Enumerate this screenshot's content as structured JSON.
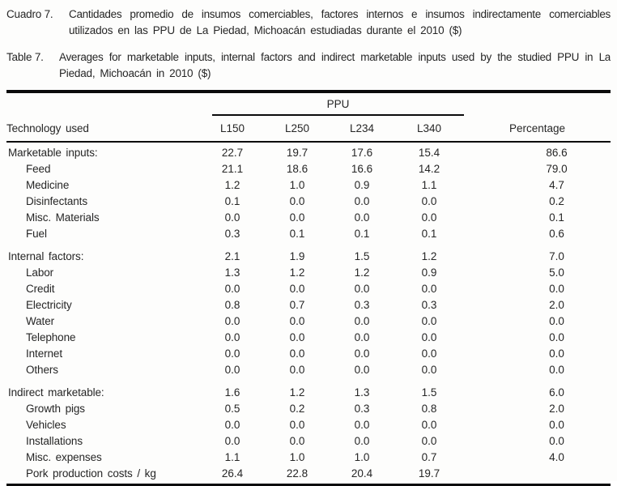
{
  "caption_es": {
    "label": "Cuadro 7.",
    "line1": "Cantidades promedio de insumos comerciables, factores internos e insumos indirectamente comerciables",
    "line2": "utilizados en las PPU de La Piedad, Michoacán estudiadas durante el 2010 ($)"
  },
  "caption_en": {
    "label": "Table 7.",
    "line1": "Averages for marketable inputs, internal factors and indirect marketable inputs used by the studied PPU in La",
    "line2": "Piedad, Michoacán in 2010 ($)"
  },
  "table": {
    "span_header": "PPU",
    "row_header": "Technology used",
    "ppu_columns": [
      "L150",
      "L250",
      "L234",
      "L340"
    ],
    "percentage_header": "Percentage",
    "rows": [
      {
        "label": "Marketable inputs:",
        "indent": false,
        "section": true,
        "gap": false,
        "values": [
          "22.7",
          "19.7",
          "17.6",
          "15.4"
        ],
        "percentage": "86.6"
      },
      {
        "label": "Feed",
        "indent": true,
        "section": false,
        "gap": false,
        "values": [
          "21.1",
          "18.6",
          "16.6",
          "14.2"
        ],
        "percentage": "79.0"
      },
      {
        "label": "Medicine",
        "indent": true,
        "section": false,
        "gap": false,
        "values": [
          "1.2",
          "1.0",
          "0.9",
          "1.1"
        ],
        "percentage": "4.7"
      },
      {
        "label": "Disinfectants",
        "indent": true,
        "section": false,
        "gap": false,
        "values": [
          "0.1",
          "0.0",
          "0.0",
          "0.0"
        ],
        "percentage": "0.2"
      },
      {
        "label": "Misc. Materials",
        "indent": true,
        "section": false,
        "gap": false,
        "values": [
          "0.0",
          "0.0",
          "0.0",
          "0.0"
        ],
        "percentage": "0.1"
      },
      {
        "label": "Fuel",
        "indent": true,
        "section": false,
        "gap": false,
        "values": [
          "0.3",
          "0.1",
          "0.1",
          "0.1"
        ],
        "percentage": "0.6"
      },
      {
        "label": "Internal factors:",
        "indent": false,
        "section": true,
        "gap": true,
        "values": [
          "2.1",
          "1.9",
          "1.5",
          "1.2"
        ],
        "percentage": "7.0"
      },
      {
        "label": "Labor",
        "indent": true,
        "section": false,
        "gap": false,
        "values": [
          "1.3",
          "1.2",
          "1.2",
          "0.9"
        ],
        "percentage": "5.0"
      },
      {
        "label": "Credit",
        "indent": true,
        "section": false,
        "gap": false,
        "values": [
          "0.0",
          "0.0",
          "0.0",
          "0.0"
        ],
        "percentage": "0.0"
      },
      {
        "label": "Electricity",
        "indent": true,
        "section": false,
        "gap": false,
        "values": [
          "0.8",
          "0.7",
          "0.3",
          "0.3"
        ],
        "percentage": "2.0"
      },
      {
        "label": "Water",
        "indent": true,
        "section": false,
        "gap": false,
        "values": [
          "0.0",
          "0.0",
          "0.0",
          "0.0"
        ],
        "percentage": "0.0"
      },
      {
        "label": "Telephone",
        "indent": true,
        "section": false,
        "gap": false,
        "values": [
          "0.0",
          "0.0",
          "0.0",
          "0.0"
        ],
        "percentage": "0.0"
      },
      {
        "label": "Internet",
        "indent": true,
        "section": false,
        "gap": false,
        "values": [
          "0.0",
          "0.0",
          "0.0",
          "0.0"
        ],
        "percentage": "0.0"
      },
      {
        "label": "Others",
        "indent": true,
        "section": false,
        "gap": false,
        "values": [
          "0.0",
          "0.0",
          "0.0",
          "0.0"
        ],
        "percentage": "0.0"
      },
      {
        "label": "Indirect marketable:",
        "indent": false,
        "section": true,
        "gap": true,
        "values": [
          "1.6",
          "1.2",
          "1.3",
          "1.5"
        ],
        "percentage": "6.0"
      },
      {
        "label": "Growth pigs",
        "indent": true,
        "section": false,
        "gap": false,
        "values": [
          "0.5",
          "0.2",
          "0.3",
          "0.8"
        ],
        "percentage": "2.0"
      },
      {
        "label": "Vehicles",
        "indent": true,
        "section": false,
        "gap": false,
        "values": [
          "0.0",
          "0.0",
          "0.0",
          "0.0"
        ],
        "percentage": "0.0"
      },
      {
        "label": "Installations",
        "indent": true,
        "section": false,
        "gap": false,
        "values": [
          "0.0",
          "0.0",
          "0.0",
          "0.0"
        ],
        "percentage": "0.0"
      },
      {
        "label": "Misc. expenses",
        "indent": true,
        "section": false,
        "gap": false,
        "values": [
          "1.1",
          "1.0",
          "1.0",
          "0.7"
        ],
        "percentage": "4.0"
      },
      {
        "label": "Pork production costs / kg",
        "indent": true,
        "section": false,
        "gap": false,
        "values": [
          "26.4",
          "22.8",
          "20.4",
          "19.7"
        ],
        "percentage": ""
      }
    ]
  }
}
